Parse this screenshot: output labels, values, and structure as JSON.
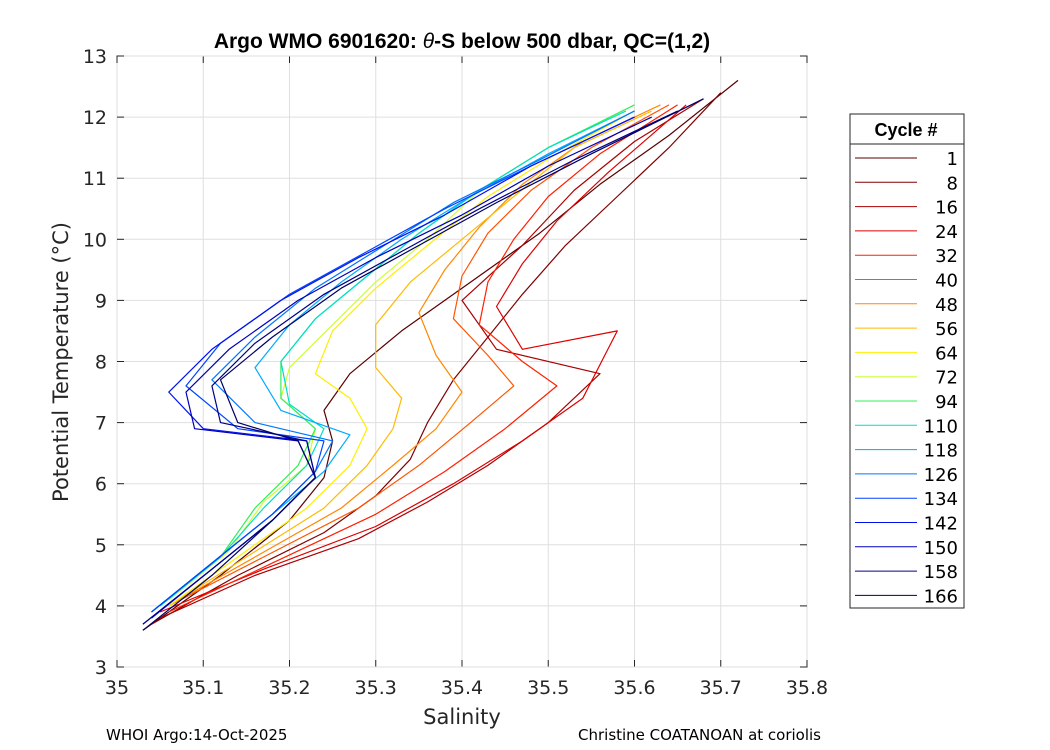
{
  "chart_data": {
    "type": "line",
    "title": "Argo WMO 6901620: θ-S below 500 dbar,  QC=(1,2)",
    "title_parts": {
      "pre": "Argo WMO 6901620: ",
      "theta": "θ",
      "post": "-S below 500 dbar,  QC=(1,2)"
    },
    "xlabel": "Salinity",
    "ylabel": "Potential Temperature (°C)",
    "xlim": [
      35,
      35.8
    ],
    "ylim": [
      3,
      13
    ],
    "xticks": [
      "35",
      "35.1",
      "35.2",
      "35.3",
      "35.4",
      "35.5",
      "35.6",
      "35.7",
      "35.8"
    ],
    "yticks": [
      "3",
      "4",
      "5",
      "6",
      "7",
      "8",
      "9",
      "10",
      "11",
      "12",
      "13"
    ],
    "grid": true,
    "legend_position": "outside-right",
    "legend_title": "Cycle #",
    "series": [
      {
        "name": "1",
        "color": "#5a0000",
        "x": [
          35.03,
          35.12,
          35.2,
          35.24,
          35.25,
          35.24,
          35.27,
          35.33,
          35.41,
          35.49,
          35.56,
          35.64,
          35.72
        ],
        "y": [
          3.6,
          4.5,
          5.4,
          6.1,
          6.7,
          7.2,
          7.8,
          8.5,
          9.3,
          10.1,
          10.9,
          11.7,
          12.6
        ]
      },
      {
        "name": "8",
        "color": "#800000",
        "x": [
          35.04,
          35.14,
          35.24,
          35.3,
          35.34,
          35.36,
          35.39,
          35.43,
          35.47,
          35.52,
          35.58,
          35.64,
          35.7
        ],
        "y": [
          3.7,
          4.5,
          5.2,
          5.8,
          6.4,
          7.0,
          7.7,
          8.4,
          9.1,
          9.9,
          10.7,
          11.5,
          12.4
        ]
      },
      {
        "name": "16",
        "color": "#aa0000",
        "x": [
          35.05,
          35.16,
          35.28,
          35.36,
          35.43,
          35.5,
          35.56,
          35.44,
          35.4,
          35.47,
          35.53,
          35.6,
          35.68
        ],
        "y": [
          3.8,
          4.5,
          5.1,
          5.7,
          6.3,
          7.0,
          7.8,
          8.2,
          9.0,
          9.9,
          10.8,
          11.6,
          12.3
        ]
      },
      {
        "name": "24",
        "color": "#dd0000",
        "x": [
          35.05,
          35.17,
          35.3,
          35.39,
          35.47,
          35.54,
          35.58,
          35.47,
          35.44,
          35.47,
          35.51,
          35.57,
          35.66
        ],
        "y": [
          3.9,
          4.6,
          5.3,
          6.0,
          6.7,
          7.4,
          8.5,
          8.2,
          8.9,
          9.6,
          10.3,
          11.1,
          12.2
        ]
      },
      {
        "name": "32",
        "color": "#ff2000",
        "x": [
          35.06,
          35.18,
          35.3,
          35.38,
          35.45,
          35.51,
          35.47,
          35.42,
          35.43,
          35.46,
          35.5,
          35.56,
          35.65
        ],
        "y": [
          3.9,
          4.7,
          5.5,
          6.2,
          6.9,
          7.6,
          8.0,
          8.6,
          9.3,
          10.0,
          10.7,
          11.4,
          12.2
        ]
      },
      {
        "name": "40",
        "color": "#ff5500",
        "x": [
          35.06,
          35.17,
          35.28,
          35.35,
          35.41,
          35.46,
          35.43,
          35.39,
          35.4,
          35.43,
          35.48,
          35.55,
          35.64
        ],
        "y": [
          4.0,
          4.8,
          5.6,
          6.3,
          7.0,
          7.6,
          8.1,
          8.7,
          9.4,
          10.1,
          10.8,
          11.5,
          12.2
        ]
      },
      {
        "name": "48",
        "color": "#ff8800",
        "x": [
          35.06,
          35.16,
          35.26,
          35.32,
          35.37,
          35.4,
          35.37,
          35.35,
          35.38,
          35.42,
          35.47,
          35.54,
          35.63
        ],
        "y": [
          4.0,
          4.8,
          5.6,
          6.3,
          6.9,
          7.5,
          8.1,
          8.8,
          9.5,
          10.2,
          10.9,
          11.6,
          12.2
        ]
      },
      {
        "name": "56",
        "color": "#ffbb00",
        "x": [
          35.06,
          35.15,
          35.24,
          35.29,
          35.32,
          35.33,
          35.3,
          35.3,
          35.34,
          35.4,
          35.46,
          35.53,
          35.62
        ],
        "y": [
          4.0,
          4.8,
          5.6,
          6.3,
          6.9,
          7.4,
          7.9,
          8.6,
          9.3,
          10.0,
          10.7,
          11.5,
          12.1
        ]
      },
      {
        "name": "64",
        "color": "#ffee00",
        "x": [
          35.06,
          35.14,
          35.22,
          35.27,
          35.29,
          35.27,
          35.23,
          35.25,
          35.3,
          35.36,
          35.43,
          35.51,
          35.6
        ],
        "y": [
          4.0,
          4.8,
          5.6,
          6.3,
          6.9,
          7.4,
          7.8,
          8.5,
          9.2,
          9.9,
          10.7,
          11.4,
          12.1
        ]
      },
      {
        "name": "72",
        "color": "#ccff33",
        "x": [
          35.06,
          35.13,
          35.17,
          35.22,
          35.23,
          35.19,
          35.2,
          35.25,
          35.3,
          35.36,
          35.42,
          35.5,
          35.59
        ],
        "y": [
          4.1,
          4.9,
          5.7,
          6.3,
          6.9,
          7.4,
          7.9,
          8.6,
          9.3,
          10.0,
          10.8,
          11.5,
          12.1
        ]
      },
      {
        "name": "94",
        "color": "#33ee55",
        "x": [
          35.05,
          35.12,
          35.16,
          35.21,
          35.23,
          35.19,
          35.19,
          35.23,
          35.29,
          35.35,
          35.42,
          35.5,
          35.6
        ],
        "y": [
          4.0,
          4.8,
          5.6,
          6.3,
          6.9,
          7.4,
          8.0,
          8.7,
          9.4,
          10.1,
          10.8,
          11.5,
          12.2
        ]
      },
      {
        "name": "110",
        "color": "#00ddcc",
        "x": [
          35.05,
          35.12,
          35.17,
          35.22,
          35.24,
          35.2,
          35.19,
          35.23,
          35.29,
          35.35,
          35.42,
          35.5,
          35.59
        ],
        "y": [
          4.0,
          4.8,
          5.6,
          6.3,
          6.9,
          7.3,
          8.0,
          8.7,
          9.4,
          10.1,
          10.8,
          11.5,
          12.1
        ]
      },
      {
        "name": "118",
        "color": "#00aaff",
        "x": [
          35.04,
          35.11,
          35.18,
          35.24,
          35.27,
          35.19,
          35.16,
          35.2,
          35.26,
          35.33,
          35.41,
          35.5,
          35.6
        ],
        "y": [
          3.9,
          4.7,
          5.5,
          6.2,
          6.8,
          7.2,
          7.9,
          8.6,
          9.3,
          10.0,
          10.7,
          11.4,
          12.1
        ]
      },
      {
        "name": "126",
        "color": "#0077ff",
        "x": [
          35.04,
          35.11,
          35.18,
          35.23,
          35.25,
          35.16,
          35.11,
          35.16,
          35.23,
          35.31,
          35.39,
          35.49,
          35.6
        ],
        "y": [
          3.9,
          4.7,
          5.5,
          6.2,
          6.7,
          7.0,
          7.7,
          8.4,
          9.2,
          9.9,
          10.6,
          11.3,
          12.1
        ]
      },
      {
        "name": "134",
        "color": "#0044ff",
        "x": [
          35.04,
          35.11,
          35.18,
          35.23,
          35.24,
          35.14,
          35.08,
          35.12,
          35.2,
          35.29,
          35.38,
          35.48,
          35.6
        ],
        "y": [
          3.9,
          4.7,
          5.5,
          6.2,
          6.7,
          6.9,
          7.6,
          8.3,
          9.1,
          9.8,
          10.5,
          11.2,
          12.0
        ]
      },
      {
        "name": "142",
        "color": "#0011ee",
        "x": [
          35.04,
          35.11,
          35.18,
          35.23,
          35.22,
          35.1,
          35.06,
          35.11,
          35.19,
          35.28,
          35.38,
          35.48,
          35.6
        ],
        "y": [
          3.8,
          4.6,
          5.4,
          6.1,
          6.7,
          6.9,
          7.5,
          8.2,
          9.0,
          9.7,
          10.4,
          11.2,
          12.0
        ]
      },
      {
        "name": "150",
        "color": "#0000bb",
        "x": [
          35.03,
          35.11,
          35.18,
          35.23,
          35.21,
          35.09,
          35.08,
          35.13,
          35.21,
          35.3,
          35.4,
          35.5,
          35.62
        ],
        "y": [
          3.7,
          4.6,
          5.4,
          6.1,
          6.7,
          6.9,
          7.5,
          8.2,
          9.0,
          9.7,
          10.4,
          11.2,
          12.0
        ]
      },
      {
        "name": "158",
        "color": "#000088",
        "x": [
          35.03,
          35.11,
          35.18,
          35.23,
          35.22,
          35.12,
          35.11,
          35.16,
          35.24,
          35.33,
          35.42,
          35.53,
          35.65
        ],
        "y": [
          3.7,
          4.6,
          5.4,
          6.1,
          6.7,
          7.0,
          7.6,
          8.3,
          9.1,
          9.8,
          10.5,
          11.3,
          12.1
        ]
      },
      {
        "name": "166",
        "color": "#000066",
        "x": [
          35.03,
          35.11,
          35.18,
          35.23,
          35.21,
          35.14,
          35.12,
          35.18,
          35.26,
          35.35,
          35.44,
          35.55,
          35.68
        ],
        "y": [
          3.6,
          4.5,
          5.4,
          6.1,
          6.7,
          7.0,
          7.7,
          8.4,
          9.2,
          9.9,
          10.6,
          11.4,
          12.3
        ]
      }
    ]
  },
  "footer": {
    "left": "WHOI Argo:14-Oct-2025",
    "right": "Christine COATANOAN at coriolis"
  }
}
